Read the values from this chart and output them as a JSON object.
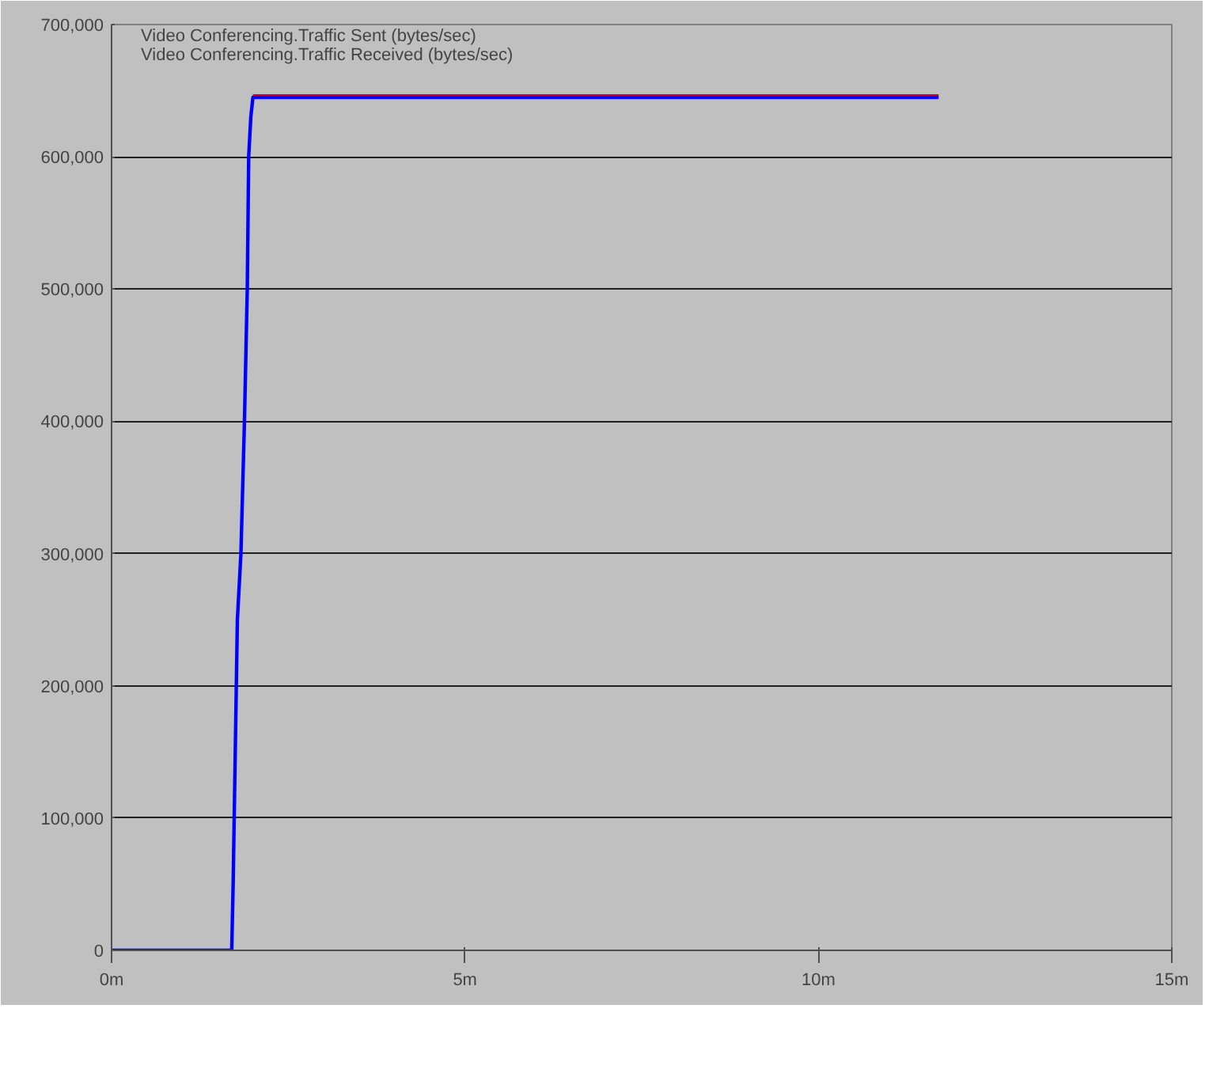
{
  "chart_data": {
    "type": "line",
    "xlim": [
      0,
      15
    ],
    "ylim": [
      0,
      700000
    ],
    "xticks": [
      {
        "value": 0,
        "label": "0m"
      },
      {
        "value": 5,
        "label": "5m"
      },
      {
        "value": 10,
        "label": "10m"
      },
      {
        "value": 15,
        "label": "15m"
      }
    ],
    "yticks": [
      {
        "value": 0,
        "label": "0"
      },
      {
        "value": 100000,
        "label": "100,000"
      },
      {
        "value": 200000,
        "label": "200,000"
      },
      {
        "value": 300000,
        "label": "300,000"
      },
      {
        "value": 400000,
        "label": "400,000"
      },
      {
        "value": 500000,
        "label": "500,000"
      },
      {
        "value": 600000,
        "label": "600,000"
      },
      {
        "value": 700000,
        "label": "700,000"
      }
    ],
    "grid": "y",
    "legend": "top left",
    "marker": "none",
    "line_style": "solid",
    "series": [
      {
        "name": "Video Conferencing.Traffic Sent (bytes/sec)",
        "color": "#0000ff",
        "x": [
          0,
          1.7,
          1.72,
          1.75,
          1.78,
          1.83,
          1.88,
          1.92,
          1.94,
          1.97,
          2.0,
          2.5,
          3,
          4,
          5,
          6,
          7,
          8,
          9,
          10,
          11,
          11.7
        ],
        "values": [
          0,
          0,
          50000,
          150000,
          250000,
          300000,
          400000,
          500000,
          600000,
          630000,
          645000,
          645000,
          645000,
          645000,
          645000,
          645000,
          645000,
          645000,
          645000,
          645000,
          645000,
          645000
        ]
      },
      {
        "name": "Video Conferencing.Traffic Received (bytes/sec)",
        "color": "#ff0000",
        "x": [
          2.0,
          2.5,
          3,
          4,
          5,
          6,
          7,
          8,
          9,
          10,
          11,
          11.7
        ],
        "values": [
          646000,
          646000,
          646000,
          646000,
          646000,
          646000,
          646000,
          646000,
          646000,
          646000,
          646000,
          646000
        ]
      }
    ]
  }
}
